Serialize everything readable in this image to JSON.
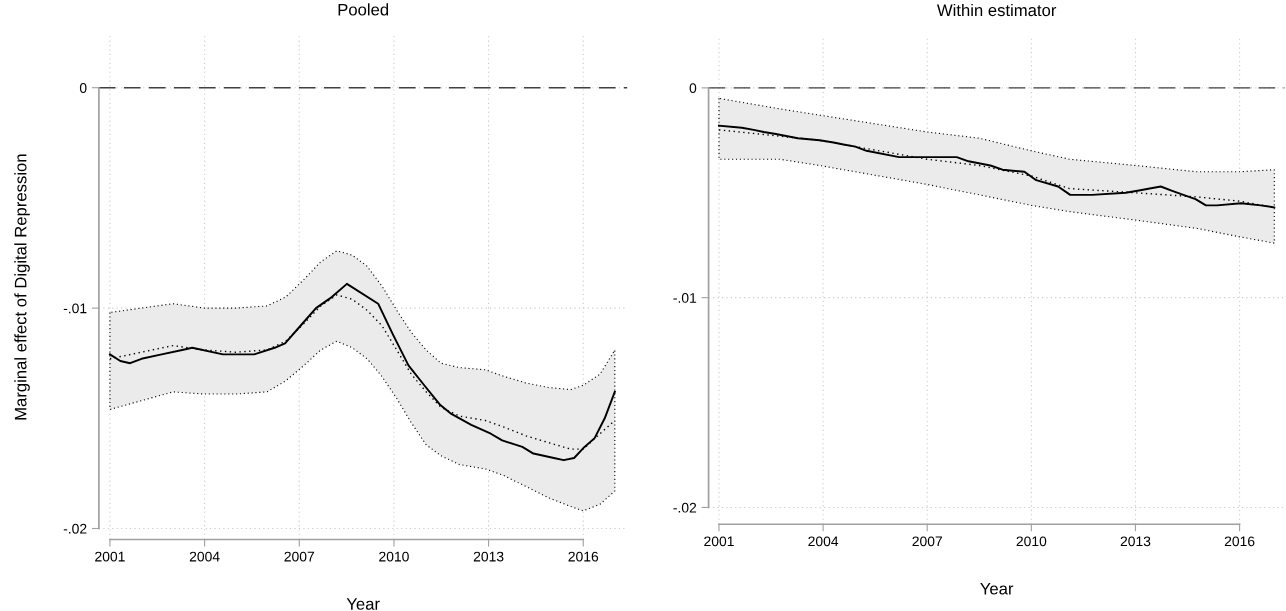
{
  "chart_data": [
    {
      "type": "line",
      "title": "Pooled",
      "xlabel": "Year",
      "ylabel": "Marginal effect of Digital Repression",
      "xlim": [
        2000.65,
        2017.4
      ],
      "ylim": [
        -0.0205,
        0.0024
      ],
      "xticks": [
        2001,
        2004,
        2007,
        2010,
        2013,
        2016
      ],
      "yticks": [
        {
          "value": 0,
          "label": "0"
        },
        {
          "value": -0.01,
          "label": "-.01"
        },
        {
          "value": -0.02,
          "label": "-.02"
        }
      ],
      "grid": true,
      "marker": "none",
      "ref_lines": [
        {
          "axis": "y",
          "value": 0,
          "label": null,
          "color": "#404040",
          "line_style": "dashed"
        }
      ],
      "series": [
        {
          "color": "#000000",
          "line_style": "dotted",
          "x": [
            2001,
            2002.0,
            2003.0,
            2003.99,
            2004.99,
            2005.98,
            2006.57,
            2007.15,
            2007.68,
            2008.19,
            2008.68,
            2009.15,
            2009.62,
            2010.09,
            2010.55,
            2011.02,
            2011.49,
            2012.08,
            2012.9,
            2013.49,
            2014.19,
            2014.89,
            2015.6,
            2016.0,
            2016.53,
            2017.0
          ],
          "values": [
            -0.0123,
            -0.012,
            -0.0117,
            -0.0119,
            -0.012,
            -0.0119,
            -0.0115,
            -0.0107,
            -0.0099,
            -0.0094,
            -0.0096,
            -0.0101,
            -0.0108,
            -0.0119,
            -0.013,
            -0.0138,
            -0.0145,
            -0.0149,
            -0.0151,
            -0.0154,
            -0.0158,
            -0.0161,
            -0.0164,
            -0.0164,
            -0.0157,
            -0.0151
          ],
          "upper": [
            -0.0102,
            -0.01,
            -0.0098,
            -0.01,
            -0.01,
            -0.0099,
            -0.0095,
            -0.0087,
            -0.0079,
            -0.0074,
            -0.0076,
            -0.0081,
            -0.009,
            -0.0101,
            -0.0111,
            -0.0119,
            -0.0125,
            -0.0127,
            -0.0128,
            -0.0131,
            -0.0134,
            -0.0136,
            -0.0137,
            -0.0135,
            -0.013,
            -0.0119
          ],
          "lower": [
            -0.0146,
            -0.0142,
            -0.0138,
            -0.0139,
            -0.0139,
            -0.0138,
            -0.0133,
            -0.0126,
            -0.0119,
            -0.0115,
            -0.0118,
            -0.0123,
            -0.0131,
            -0.0141,
            -0.0152,
            -0.0162,
            -0.0167,
            -0.0171,
            -0.0173,
            -0.0176,
            -0.0181,
            -0.0186,
            -0.019,
            -0.0192,
            -0.0189,
            -0.0183
          ]
        },
        {
          "color": "#000000",
          "line_style": "solid",
          "x": [
            2001,
            2001.33,
            2001.64,
            2002.0,
            2002.64,
            2003.29,
            2003.61,
            2004.58,
            2005.57,
            2006.22,
            2006.55,
            2007.04,
            2007.53,
            2008.03,
            2008.51,
            2009.5,
            2009.97,
            2010.46,
            2010.96,
            2011.47,
            2011.82,
            2012.45,
            2013.07,
            2013.43,
            2014.07,
            2014.42,
            2015.07,
            2015.38,
            2015.71,
            2016.04,
            2016.36,
            2016.68,
            2017.0
          ],
          "values": [
            -0.0121,
            -0.0124,
            -0.0125,
            -0.0123,
            -0.0121,
            -0.0119,
            -0.0118,
            -0.0121,
            -0.0121,
            -0.0118,
            -0.0116,
            -0.0108,
            -0.01,
            -0.0095,
            -0.0089,
            -0.0098,
            -0.0112,
            -0.0126,
            -0.0135,
            -0.0144,
            -0.0148,
            -0.0153,
            -0.0157,
            -0.016,
            -0.0163,
            -0.0166,
            -0.0168,
            -0.0169,
            -0.0168,
            -0.0163,
            -0.0159,
            -0.015,
            -0.0138
          ]
        }
      ]
    },
    {
      "type": "line",
      "title": "Within estimator",
      "xlabel": "Year",
      "xlim": [
        2000.7,
        2017.3
      ],
      "ylim": [
        -0.0208,
        0.0025
      ],
      "xticks": [
        2001,
        2004,
        2007,
        2010,
        2013,
        2016
      ],
      "yticks": [
        {
          "value": 0,
          "label": "0"
        },
        {
          "value": -0.01,
          "label": "-.01"
        },
        {
          "value": -0.02,
          "label": "-.02"
        }
      ],
      "grid": true,
      "marker": "none",
      "ref_lines": [
        {
          "axis": "y",
          "value": 0,
          "label": null,
          "color": "#404040",
          "line_style": "dashed"
        }
      ],
      "series": [
        {
          "color": "#000000",
          "line_style": "dotted",
          "x": [
            2001,
            2002.75,
            2003.9,
            2006.99,
            2008.5,
            2010,
            2011.1,
            2013,
            2014.78,
            2016,
            2017
          ],
          "values": [
            -0.002,
            -0.0023,
            -0.0025,
            -0.0034,
            -0.0037,
            -0.0042,
            -0.0048,
            -0.005,
            -0.0052,
            -0.0054,
            -0.0057
          ],
          "upper": [
            -0.0005,
            -0.001,
            -0.0013,
            -0.0021,
            -0.0024,
            -0.003,
            -0.0034,
            -0.0037,
            -0.004,
            -0.004,
            -0.0039
          ],
          "lower": [
            -0.0034,
            -0.0034,
            -0.0037,
            -0.0046,
            -0.0051,
            -0.0056,
            -0.0059,
            -0.0063,
            -0.0067,
            -0.0071,
            -0.0074
          ]
        },
        {
          "color": "#000000",
          "line_style": "solid",
          "x": [
            2001,
            2001.66,
            2002.0,
            2002.29,
            2002.64,
            2003.27,
            2003.9,
            2004.3,
            2004.59,
            2004.93,
            2005.25,
            2006.19,
            2006.99,
            2007.85,
            2008.19,
            2008.82,
            2009.17,
            2009.8,
            2010.14,
            2010.77,
            2011.12,
            2011.75,
            2012.72,
            2013.06,
            2013.41,
            2013.73,
            2014.04,
            2014.38,
            2014.73,
            2015.03,
            2015.35,
            2016.04,
            2016.61,
            2017
          ],
          "values": [
            -0.0018,
            -0.0019,
            -0.002,
            -0.0021,
            -0.0022,
            -0.0024,
            -0.0025,
            -0.0026,
            -0.0027,
            -0.0028,
            -0.003,
            -0.0033,
            -0.0033,
            -0.0033,
            -0.0035,
            -0.0037,
            -0.0039,
            -0.004,
            -0.0044,
            -0.0047,
            -0.0051,
            -0.0051,
            -0.005,
            -0.0049,
            -0.0048,
            -0.0047,
            -0.0049,
            -0.0051,
            -0.0053,
            -0.0056,
            -0.0056,
            -0.0055,
            -0.0056,
            -0.0057
          ]
        }
      ]
    }
  ]
}
